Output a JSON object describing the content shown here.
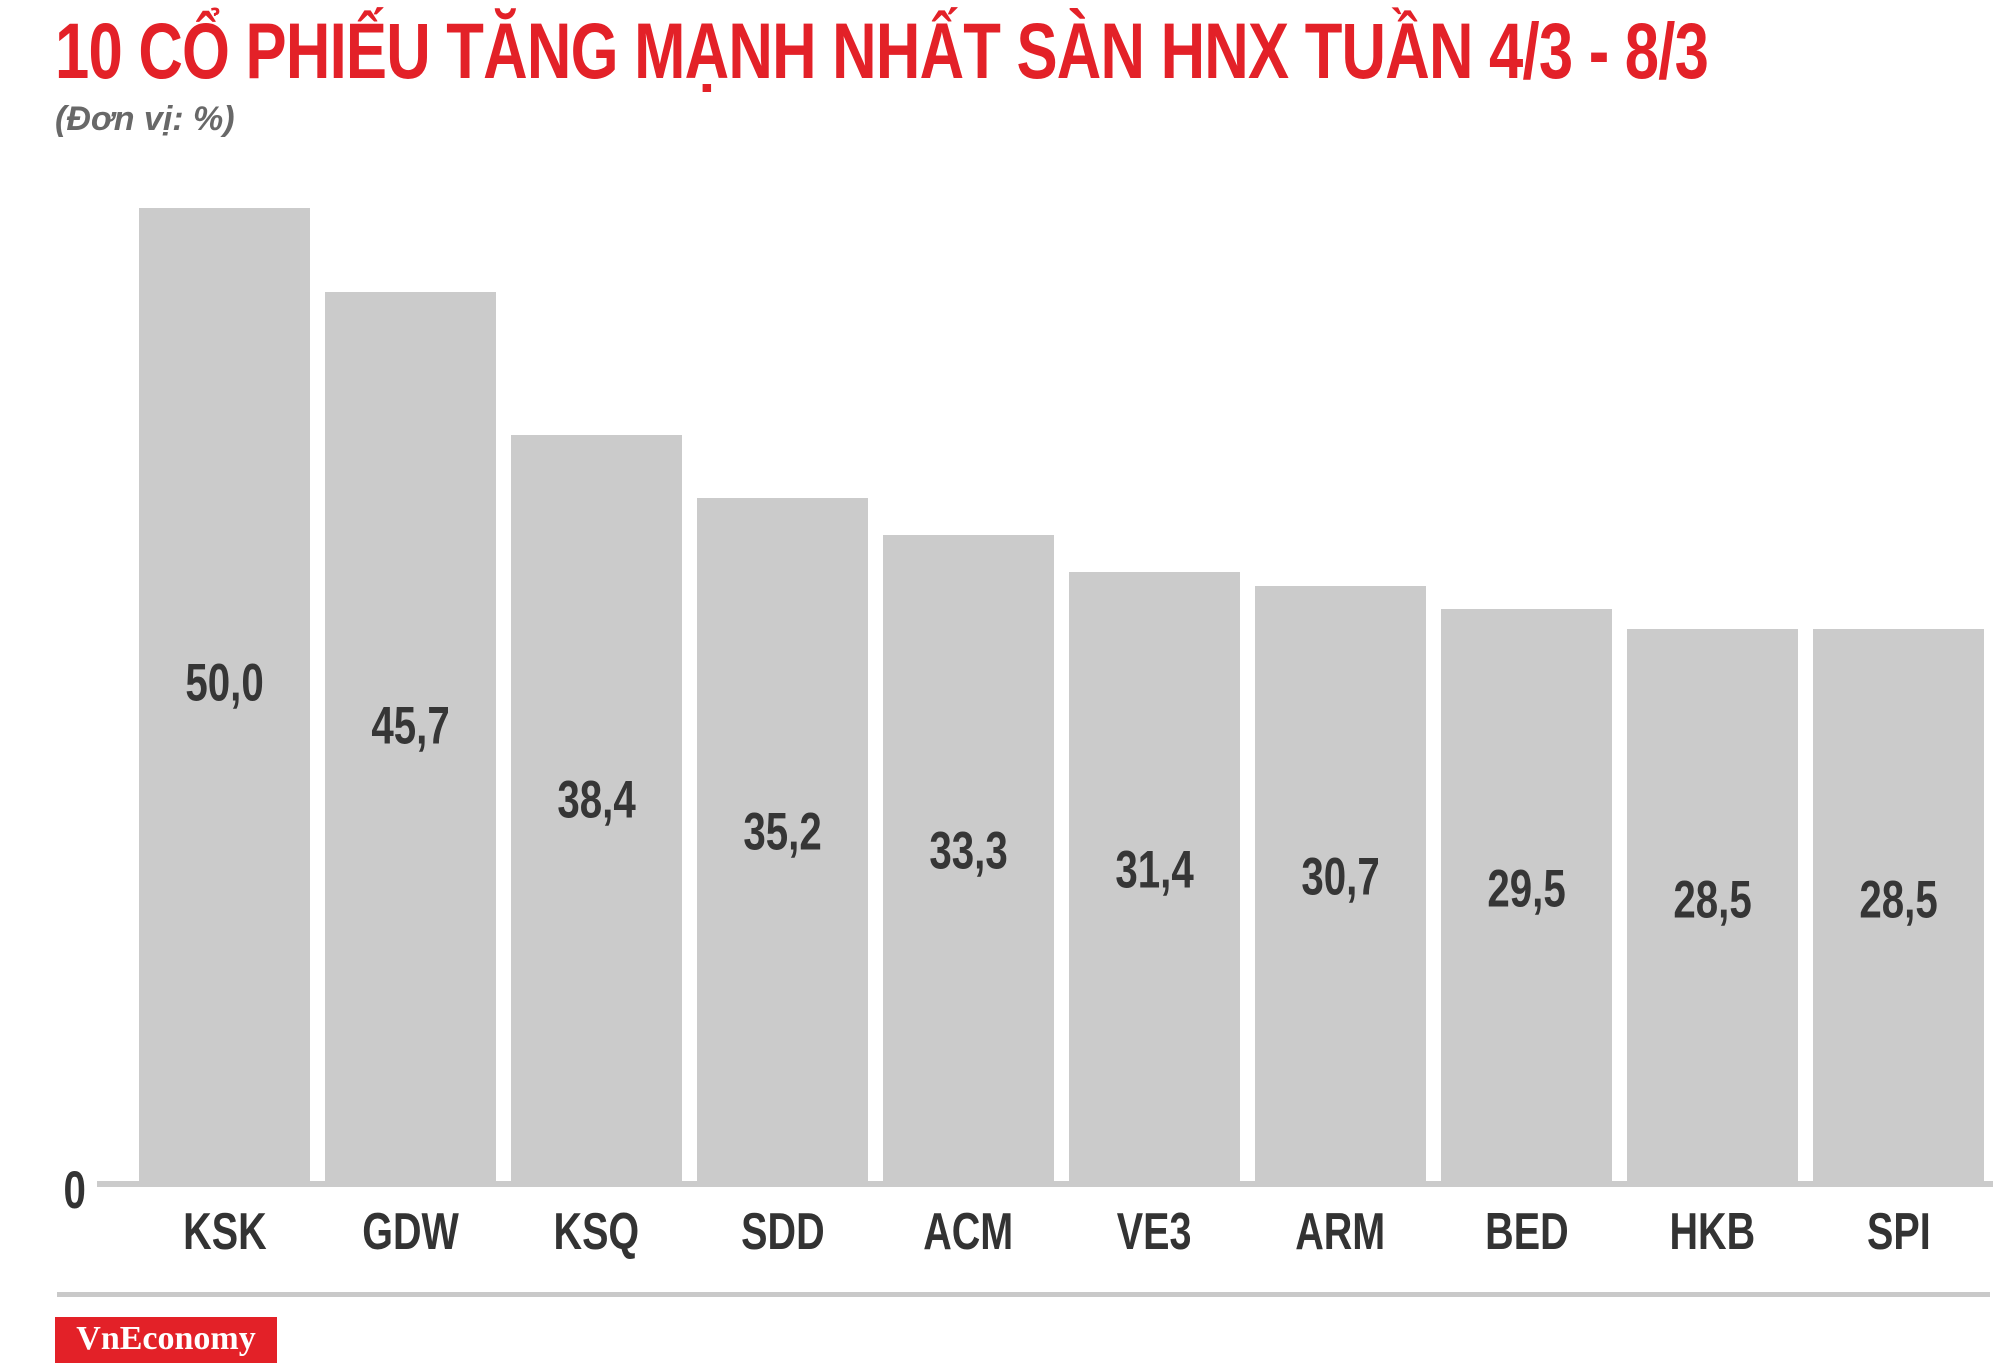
{
  "page": {
    "title": "10 CỔ PHIẾU TĂNG MẠNH NHẤT SÀN HNX TUẦN 4/3 - 8/3",
    "subtitle": "(Đơn vị: %)"
  },
  "chart_data": {
    "type": "bar",
    "orientation": "vertical",
    "title": "10 CỔ PHIẾU TĂNG MẠNH NHẤT SÀN HNX TUẦN 4/3 - 8/3",
    "unit_note": "(Đơn vị: %)",
    "categories": [
      "KSK",
      "GDW",
      "KSQ",
      "SDD",
      "ACM",
      "VE3",
      "ARM",
      "BED",
      "HKB",
      "SPI"
    ],
    "values": [
      50.0,
      45.7,
      38.4,
      35.2,
      33.3,
      31.4,
      30.7,
      29.5,
      28.5,
      28.5
    ],
    "value_labels": [
      "50,0",
      "45,7",
      "38,4",
      "35,2",
      "33,3",
      "31,4",
      "30,7",
      "29,5",
      "28,5",
      "28,5"
    ],
    "decimal_separator": ",",
    "ylim": [
      0,
      50
    ],
    "y_axis_tick_labels": [
      "0"
    ],
    "grid": false,
    "legend": false,
    "bar_color": "#cbcbcb",
    "value_label_color": "#363636",
    "category_label_color": "#333333"
  },
  "axis": {
    "zero_label": "0"
  },
  "footer": {
    "logo_text": "VnEconomy"
  },
  "colors": {
    "title_red": "#e32128",
    "logo_red": "#e32128",
    "logo_text_color": "#ffffff",
    "bar_gray": "#cbcbcb",
    "axis_gray": "#cbcbcb",
    "divider_gray": "#c9c9c9",
    "subtitle_gray": "#686868"
  }
}
